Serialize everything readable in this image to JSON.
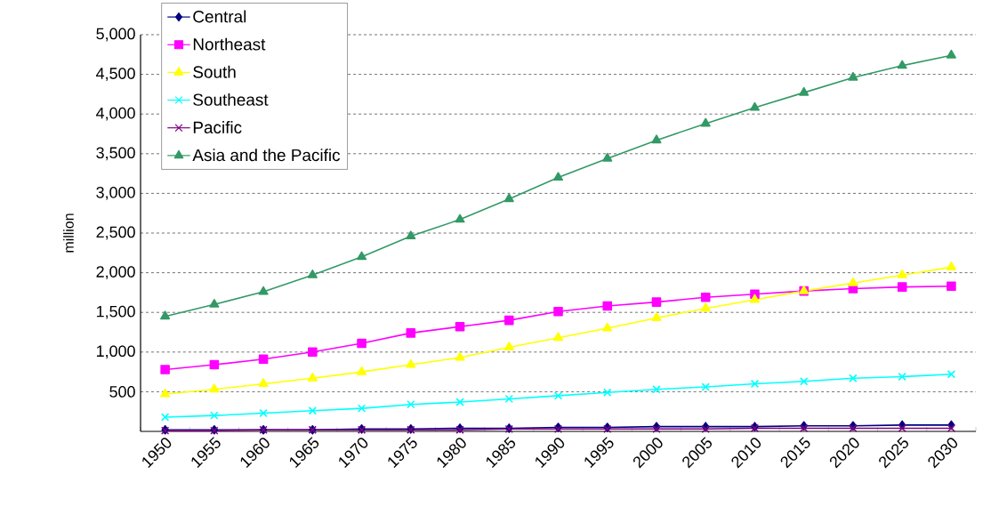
{
  "chart_data": {
    "type": "line",
    "ylabel": "million",
    "categories": [
      "1950",
      "1955",
      "1960",
      "1965",
      "1970",
      "1975",
      "1980",
      "1985",
      "1990",
      "1995",
      "2000",
      "2005",
      "2010",
      "2015",
      "2020",
      "2025",
      "2030"
    ],
    "series": [
      {
        "name": "Central",
        "color": "#000080",
        "marker": "diamond",
        "values": [
          20,
          20,
          20,
          20,
          30,
          30,
          40,
          40,
          50,
          50,
          60,
          60,
          60,
          70,
          70,
          80,
          80
        ]
      },
      {
        "name": "Northeast",
        "color": "#ff00ff",
        "marker": "square",
        "values": [
          780,
          840,
          910,
          1000,
          1110,
          1240,
          1320,
          1400,
          1510,
          1580,
          1630,
          1690,
          1730,
          1770,
          1800,
          1820,
          1830
        ]
      },
      {
        "name": "South",
        "color": "#ffff00",
        "marker": "triangle",
        "values": [
          470,
          530,
          600,
          670,
          750,
          840,
          930,
          1060,
          1180,
          1300,
          1430,
          1550,
          1660,
          1770,
          1870,
          1970,
          2070
        ]
      },
      {
        "name": "Southeast",
        "color": "#00ffff",
        "marker": "cross",
        "values": [
          180,
          200,
          230,
          260,
          290,
          340,
          370,
          410,
          450,
          490,
          530,
          560,
          600,
          630,
          670,
          690,
          720
        ]
      },
      {
        "name": "Pacific",
        "color": "#800080",
        "marker": "cross",
        "values": [
          10,
          10,
          20,
          20,
          20,
          20,
          20,
          30,
          30,
          30,
          30,
          30,
          40,
          40,
          40,
          40,
          40
        ]
      },
      {
        "name": "Asia and the Pacific",
        "color": "#339966",
        "marker": "triangle",
        "values": [
          1450,
          1600,
          1760,
          1970,
          2200,
          2460,
          2670,
          2930,
          3200,
          3440,
          3670,
          3880,
          4080,
          4270,
          4460,
          4610,
          4740
        ]
      }
    ],
    "ylim": [
      0,
      5000
    ],
    "yticks": [
      {
        "value": 500,
        "label": "500"
      },
      {
        "value": 1000,
        "label": "1,000"
      },
      {
        "value": 1500,
        "label": "1,500"
      },
      {
        "value": 2000,
        "label": "2,000"
      },
      {
        "value": 2500,
        "label": "2,500"
      },
      {
        "value": 3000,
        "label": "3,000"
      },
      {
        "value": 3500,
        "label": "3,500"
      },
      {
        "value": 4000,
        "label": "4,000"
      },
      {
        "value": 4500,
        "label": "4,500"
      },
      {
        "value": 5000,
        "label": "5,000"
      }
    ],
    "grid": "y",
    "legend": "top left",
    "line_style": "solid"
  }
}
